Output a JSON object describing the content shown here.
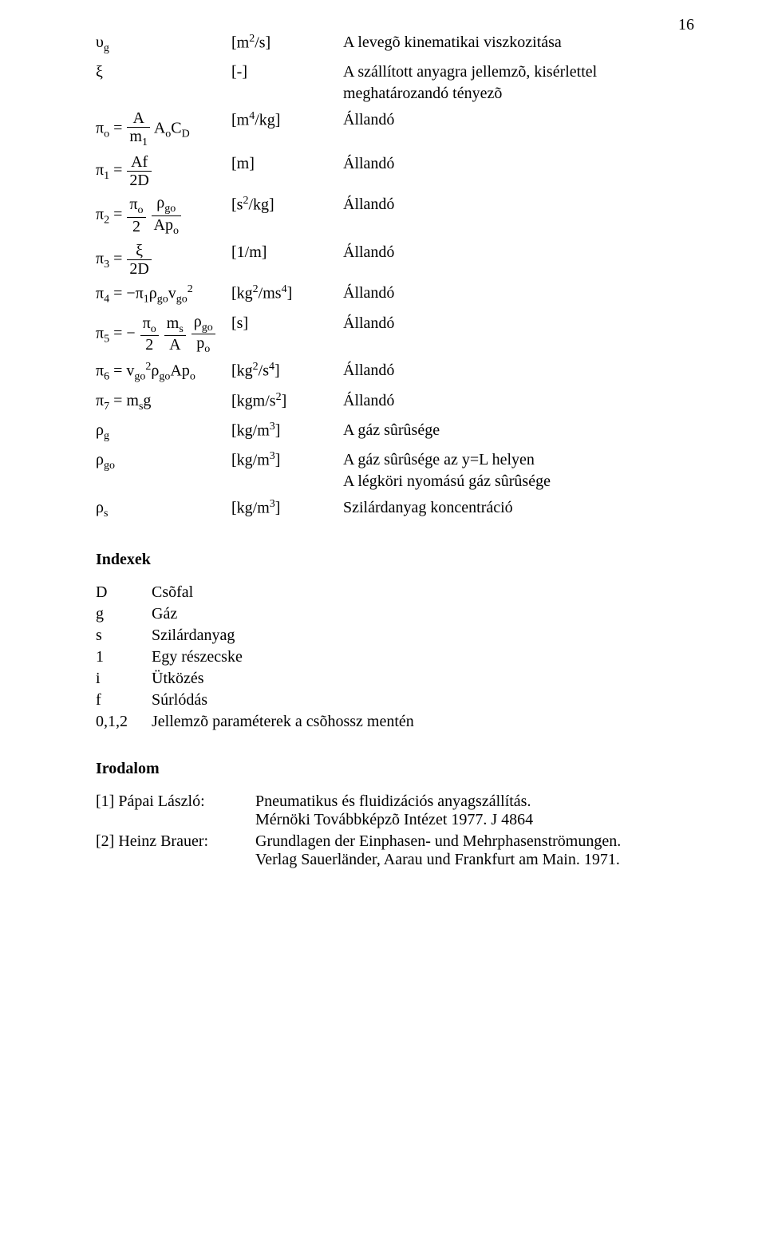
{
  "page_number": "16",
  "symbols": {
    "ug_unit": "[m",
    "ug_unit_exp": "2",
    "ug_unit_tail": "/s]",
    "ug_desc": "A levegõ kinematikai viszkozitása",
    "xi_unit": "[-]",
    "xi_desc1": "A szállított anyagra jellemzõ, kisérlettel",
    "xi_desc2": "meghatározandó tényezõ",
    "pi0_unit": "[m",
    "pi0_unit_exp": "4",
    "pi0_unit_tail": "/kg]",
    "pi0_desc": "Állandó",
    "pi1_unit": "[m]",
    "pi1_desc": "Állandó",
    "pi2_unit": "[s",
    "pi2_unit_exp": "2",
    "pi2_unit_tail": "/kg]",
    "pi2_desc": "Állandó",
    "pi3_unit": "[1/m]",
    "pi3_desc": "Állandó",
    "pi4_unit": "[kg",
    "pi4_unit_exp": "2",
    "pi4_unit_mid": "/ms",
    "pi4_unit_exp2": "4",
    "pi4_unit_tail": "]",
    "pi4_desc": "Állandó",
    "pi5_unit": "[s]",
    "pi5_desc": "Állandó",
    "pi6_unit": "[kg",
    "pi6_unit_exp": "2",
    "pi6_unit_mid": "/s",
    "pi6_unit_exp2": "4",
    "pi6_unit_tail": "]",
    "pi6_desc": "Állandó",
    "pi7_unit": "[kgm/s",
    "pi7_unit_exp": "2",
    "pi7_unit_tail": "]",
    "pi7_desc": "Állandó",
    "rhog_unit": "[kg/m",
    "rhog_unit_exp": "3",
    "rhog_unit_tail": "]",
    "rhog_desc": "A gáz sûrûsége",
    "rhogo_unit": "[kg/m",
    "rhogo_unit_exp": "3",
    "rhogo_unit_tail": "]",
    "rhogo_desc1": "A gáz sûrûsége az y=L helyen",
    "rhogo_desc2": "A légköri nyomású gáz sûrûsége",
    "rhos_unit": "[kg/m",
    "rhos_unit_exp": "3",
    "rhos_unit_tail": "]",
    "rhos_desc": "Szilárdanyag koncentráció"
  },
  "indexes": {
    "title": "Indexek",
    "rows": [
      {
        "k": "D",
        "v": "Csõfal"
      },
      {
        "k": "g",
        "v": "Gáz"
      },
      {
        "k": "s",
        "v": "Szilárdanyag"
      },
      {
        "k": "1",
        "v": "Egy részecske"
      },
      {
        "k": "i",
        "v": "Ütközés"
      },
      {
        "k": "f",
        "v": "Súrlódás"
      },
      {
        "k": "0,1,2",
        "v": "Jellemzõ paraméterek a csõhossz mentén"
      }
    ]
  },
  "bibliography": {
    "title": "Irodalom",
    "refs": [
      {
        "k": "[1] Pápai László:",
        "l1": "Pneumatikus és fluidizációs anyagszállítás.",
        "l2": "Mérnöki Továbbképzõ Intézet 1977. J 4864"
      },
      {
        "k": "[2] Heinz Brauer:",
        "l1": "Grundlagen der Einphasen- und Mehrphasenströmungen.",
        "l2": "Verlag Sauerländer, Aarau und Frankfurt am Main. 1971."
      }
    ]
  }
}
